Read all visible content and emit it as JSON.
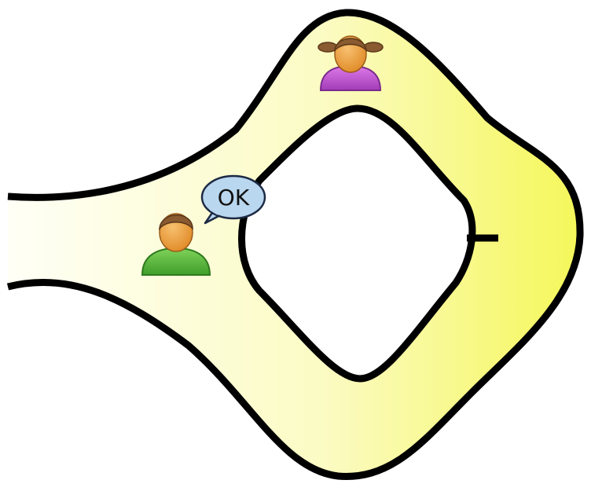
{
  "diagram": {
    "speech_bubble_text": "OK",
    "colors": {
      "corridor_start": "#fffff6",
      "corridor_end": "#f5f75a",
      "outline": "#000000",
      "bubble_fill": "#b9d7ee",
      "bubble_stroke": "#1d2a44",
      "boy_shirt": "#5cbd3a",
      "girl_shirt": "#c85ad8",
      "skin": "#f0a040",
      "hair": "#8a5a30"
    },
    "icons": [
      "boy-person-icon",
      "girl-person-icon",
      "speech-bubble-icon"
    ]
  }
}
